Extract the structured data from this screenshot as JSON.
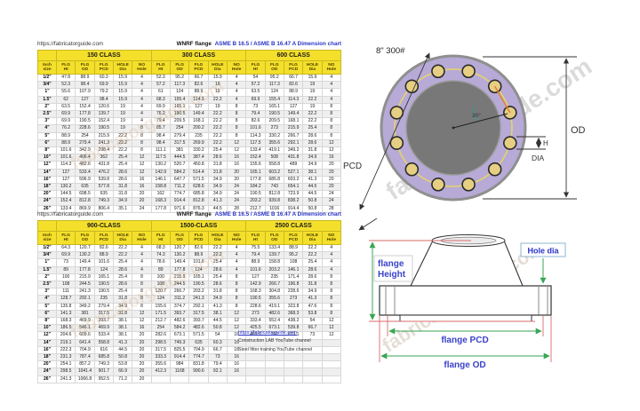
{
  "watermark": {
    "text": "fabricatorguide.com"
  },
  "colors": {
    "header_yellow": "#F4DF2B",
    "link_blue": "#2A35C9",
    "dim_green": "#3AA655",
    "ext_red": "#D96A6A",
    "flange_lavender": "#B7AAD6",
    "bolt_gold": "#E6CF83"
  },
  "tables": [
    {
      "source_url": "https://fabricatorguide.com",
      "title": "WNRF flange",
      "standard": "ASME B 16.5 / ASME B 16.47 A Dimension chart",
      "class_headers": [
        "150 CLASS",
        "300 CLASS",
        "600 CLASS"
      ],
      "corner": {
        "line1": "Inch",
        "line2": "size"
      },
      "col_headers": [
        {
          "line1": "FLG",
          "line2": "Ht"
        },
        {
          "line1": "FLG",
          "line2": "OD"
        },
        {
          "line1": "FLG",
          "line2": "PCD"
        },
        {
          "line1": "HOLE",
          "line2": "Dia"
        },
        {
          "line1": "NO",
          "line2": "Hole"
        }
      ],
      "rows": [
        [
          "1/2\"",
          "47.8",
          "88.9",
          "60.3",
          "15.9",
          "4",
          "52.3",
          "95.2",
          "66.7",
          "15.9",
          "4",
          "54",
          "95.2",
          "66.7",
          "15.9",
          "4"
        ],
        [
          "3/4\"",
          "52.3",
          "98.4",
          "69.9",
          "15.9",
          "4",
          "57.2",
          "117.3",
          "82.6",
          "19",
          "4",
          "57.2",
          "117.3",
          "82.6",
          "19",
          "4"
        ],
        [
          "1\"",
          "55.6",
          "107.9",
          "79.2",
          "15.9",
          "4",
          "61",
          "124",
          "88.9",
          "19",
          "4",
          "63.5",
          "124",
          "88.9",
          "19",
          "4"
        ],
        [
          "1.5\"",
          "62",
          "127",
          "98.4",
          "15.9",
          "4",
          "68.3",
          "155.4",
          "114.3",
          "22.2",
          "4",
          "69.9",
          "155.4",
          "114.3",
          "22.2",
          "4"
        ],
        [
          "2\"",
          "63.5",
          "152.4",
          "120.6",
          "19",
          "4",
          "69.9",
          "165.1",
          "127",
          "19",
          "8",
          "73",
          "165.1",
          "127",
          "19",
          "8"
        ],
        [
          "2.5\"",
          "69.9",
          "177.8",
          "139.7",
          "19",
          "4",
          "76.2",
          "190.5",
          "149.4",
          "22.2",
          "8",
          "79.4",
          "190.5",
          "149.4",
          "22.2",
          "8"
        ],
        [
          "3\"",
          "69.9",
          "190.5",
          "152.4",
          "19",
          "4",
          "79.4",
          "209.5",
          "168.1",
          "22.2",
          "8",
          "82.6",
          "209.5",
          "168.1",
          "22.2",
          "8"
        ],
        [
          "4\"",
          "76.2",
          "228.6",
          "190.5",
          "19",
          "8",
          "85.7",
          "254",
          "200.2",
          "22.2",
          "8",
          "101.6",
          "273",
          "215.9",
          "25.4",
          "8"
        ],
        [
          "5\"",
          "88.9",
          "254",
          "215.9",
          "22.2",
          "8",
          "98.4",
          "279.4",
          "235",
          "22.2",
          "8",
          "114.3",
          "330.2",
          "266.7",
          "28.6",
          "8"
        ],
        [
          "6\"",
          "88.9",
          "279.4",
          "241.3",
          "22.2",
          "8",
          "98.4",
          "317.5",
          "269.9",
          "22.2",
          "12",
          "117.5",
          "355.6",
          "292.1",
          "28.6",
          "12"
        ],
        [
          "8\"",
          "101.6",
          "342.9",
          "298.4",
          "22.2",
          "8",
          "111.1",
          "381",
          "330.2",
          "25.4",
          "12",
          "133.4",
          "419.1",
          "349.2",
          "31.8",
          "12"
        ],
        [
          "10\"",
          "101.6",
          "406.4",
          "362",
          "25.4",
          "12",
          "117.5",
          "444.5",
          "387.4",
          "28.6",
          "16",
          "152.4",
          "508",
          "431.8",
          "34.9",
          "16"
        ],
        [
          "12\"",
          "114.3",
          "482.6",
          "431.8",
          "25.4",
          "12",
          "130.2",
          "520.7",
          "450.8",
          "31.8",
          "16",
          "155.6",
          "558.8",
          "489",
          "34.9",
          "20"
        ],
        [
          "14\"",
          "127",
          "533.4",
          "476.2",
          "28.6",
          "12",
          "142.9",
          "584.2",
          "514.4",
          "31.8",
          "20",
          "165.1",
          "603.2",
          "527.1",
          "38.1",
          "20"
        ],
        [
          "16\"",
          "127",
          "596.9",
          "539.8",
          "28.6",
          "16",
          "146.1",
          "647.7",
          "571.5",
          "34.9",
          "20",
          "177.8",
          "685.8",
          "603.2",
          "41.3",
          "20"
        ],
        [
          "18\"",
          "130.2",
          "635",
          "577.8",
          "31.8",
          "16",
          "158.8",
          "711.2",
          "628.6",
          "34.9",
          "24",
          "184.2",
          "743",
          "654.1",
          "44.5",
          "20"
        ],
        [
          "20\"",
          "144.5",
          "698.5",
          "635",
          "31.8",
          "20",
          "162",
          "774.7",
          "685.8",
          "34.9",
          "24",
          "190.5",
          "812.8",
          "723.9",
          "44.5",
          "24"
        ],
        [
          "24\"",
          "152.4",
          "812.8",
          "749.3",
          "34.9",
          "20",
          "168.3",
          "914.4",
          "812.8",
          "41.3",
          "24",
          "203.2",
          "939.8",
          "838.2",
          "50.8",
          "24"
        ],
        [
          "26\"",
          "133.4",
          "869.9",
          "806.4",
          "35.1",
          "24",
          "177.8",
          "971.6",
          "876.3",
          "44.5",
          "28",
          "212.7",
          "1016",
          "914.4",
          "50.8",
          "28"
        ]
      ]
    },
    {
      "source_url": "https://fabricatorguide.com",
      "title": "WNRF flange",
      "standard": "ASME B 16.5 / ASME B 16.47 A Dimension chart",
      "class_headers": [
        "900-CLASS",
        "1500-CLASS",
        "2500 CLASS"
      ],
      "corner": {
        "line1": "Inch",
        "line2": "size"
      },
      "col_headers": [
        {
          "line1": "FLG",
          "line2": "Ht"
        },
        {
          "line1": "FLG",
          "line2": "OD"
        },
        {
          "line1": "FLG",
          "line2": "PCD"
        },
        {
          "line1": "HOLE",
          "line2": "Dia"
        },
        {
          "line1": "NO",
          "line2": "Hole"
        }
      ],
      "rows": [
        [
          "1/2\"",
          "64.3",
          "120.7",
          "82.6",
          "22.2",
          "4",
          "68.3",
          "120.7",
          "82.6",
          "22.2",
          "4",
          "75.5",
          "133.4",
          "88.9",
          "22.2",
          "4"
        ],
        [
          "3/4\"",
          "69.9",
          "130.2",
          "88.9",
          "22.2",
          "4",
          "74.3",
          "130.2",
          "88.9",
          "22.2",
          "4",
          "79.4",
          "139.7",
          "95.2",
          "22.2",
          "4"
        ],
        [
          "1\"",
          "73",
          "149.4",
          "101.6",
          "25.4",
          "4",
          "78.6",
          "149.4",
          "101.6",
          "25.4",
          "4",
          "88.9",
          "158.8",
          "108",
          "25.4",
          "4"
        ],
        [
          "1.5\"",
          "89",
          "177.8",
          "124",
          "28.6",
          "4",
          "89",
          "177.8",
          "124",
          "28.6",
          "4",
          "101.6",
          "203.2",
          "146.1",
          "28.6",
          "4"
        ],
        [
          "2\"",
          "100",
          "215.9",
          "165.1",
          "25.4",
          "8",
          "100",
          "215.9",
          "165.1",
          "25.4",
          "8",
          "127",
          "235",
          "171.4",
          "28.6",
          "8"
        ],
        [
          "2.5\"",
          "108",
          "244.5",
          "190.5",
          "28.6",
          "8",
          "108",
          "244.5",
          "190.5",
          "28.6",
          "8",
          "142.9",
          "266.7",
          "196.8",
          "31.8",
          "8"
        ],
        [
          "3\"",
          "111",
          "241.3",
          "190.5",
          "25.4",
          "8",
          "120.7",
          "266.7",
          "203.2",
          "31.8",
          "8",
          "168.3",
          "304.8",
          "228.6",
          "34.9",
          "8"
        ],
        [
          "4\"",
          "128.7",
          "292.1",
          "235",
          "31.8",
          "8",
          "124",
          "311.2",
          "241.3",
          "34.9",
          "8",
          "190.5",
          "355.6",
          "273",
          "41.3",
          "8"
        ],
        [
          "5\"",
          "135.8",
          "349.2",
          "279.4",
          "34.9",
          "8",
          "155.6",
          "374.7",
          "292.1",
          "41.3",
          "8",
          "228.6",
          "419.1",
          "323.8",
          "47.6",
          "8"
        ],
        [
          "6\"",
          "141.3",
          "381",
          "317.5",
          "31.8",
          "12",
          "171.5",
          "393.7",
          "317.5",
          "38.1",
          "12",
          "273",
          "482.6",
          "368.3",
          "53.8",
          "8"
        ],
        [
          "8\"",
          "168.3",
          "469.9",
          "393.7",
          "38.1",
          "12",
          "212.7",
          "482.6",
          "393.7",
          "44.5",
          "12",
          "333.4",
          "552.4",
          "438.2",
          "54",
          "12"
        ],
        [
          "10\"",
          "186.5",
          "546.1",
          "469.9",
          "38.1",
          "16",
          "254",
          "584.2",
          "482.6",
          "50.8",
          "12",
          "425.5",
          "673.1",
          "539.8",
          "66.7",
          "12"
        ],
        [
          "12\"",
          "204.6",
          "609.6",
          "533.4",
          "38.1",
          "20",
          "282.6",
          "673.1",
          "571.5",
          "54",
          "16",
          "469.9",
          "762",
          "619.1",
          "73",
          "12"
        ],
        [
          "14\"",
          "219.1",
          "641.4",
          "558.8",
          "41.3",
          "20",
          "298.5",
          "749.3",
          "635",
          "60.3",
          "16",
          "",
          "",
          "",
          "",
          ""
        ],
        [
          "16\"",
          "222.3",
          "704.9",
          "616",
          "44.5",
          "20",
          "317.5",
          "825.5",
          "704.9",
          "66.7",
          "16",
          "",
          "",
          "",
          "",
          ""
        ],
        [
          "18\"",
          "231.3",
          "787.4",
          "685.8",
          "50.8",
          "20",
          "333.3",
          "914.4",
          "774.7",
          "73",
          "16",
          "",
          "",
          "",
          "",
          ""
        ],
        [
          "20\"",
          "254.1",
          "857.2",
          "749.3",
          "53.8",
          "20",
          "355.6",
          "984",
          "831.8",
          "79.4",
          "16",
          "",
          "",
          "",
          "",
          ""
        ],
        [
          "24\"",
          "298.5",
          "1041.4",
          "901.7",
          "66.9",
          "20",
          "412.3",
          "1168",
          "990.6",
          "92.1",
          "16",
          "",
          "",
          "",
          "",
          ""
        ],
        [
          "26\"",
          "241.3",
          "1066.8",
          "952.5",
          "71.2",
          "20",
          "",
          "",
          "",
          "",
          "",
          "",
          "",
          "",
          "",
          ""
        ]
      ]
    }
  ],
  "footer": {
    "link": "https://fabricatorguide.com",
    "line1": "Construction LAB YouTube channel",
    "line2": "Steel fitter training YouTube channel"
  },
  "front_view": {
    "caption": "8\" 300#",
    "pcd_label": "PCD",
    "od_label": "OD",
    "h_label": "H",
    "dia_label": "DIA",
    "angle_label": "30°"
  },
  "side_view": {
    "height_label_line1": "flange",
    "height_label_line2": "Height",
    "hole_dia_label": "Hole dia",
    "pcd_label": "flange PCD",
    "od_label": "flange OD"
  }
}
